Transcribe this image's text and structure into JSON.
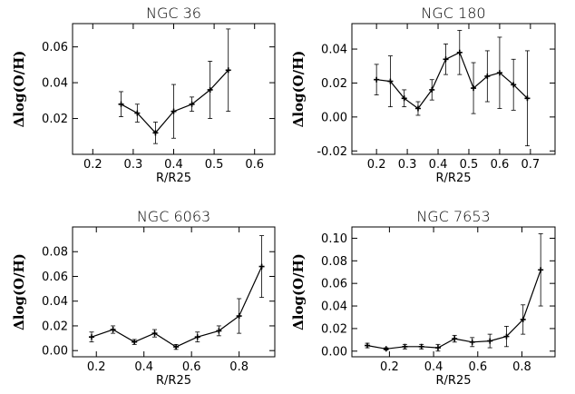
{
  "chart_data": [
    {
      "type": "line",
      "title": "NGC 36",
      "xlabel": "R/R25",
      "ylabel": "Δlog(O/H)",
      "xlim": [
        0.15,
        0.65
      ],
      "ylim": [
        0.0,
        0.073
      ],
      "xticks": [
        "0.2",
        "0.3",
        "0.4",
        "0.5",
        "0.6"
      ],
      "yticks": [
        "0.02",
        "0.04",
        "0.06"
      ],
      "x": [
        0.27,
        0.31,
        0.355,
        0.4,
        0.445,
        0.49,
        0.535
      ],
      "y": [
        0.028,
        0.023,
        0.012,
        0.024,
        0.028,
        0.036,
        0.047
      ],
      "yerr": [
        0.007,
        0.005,
        0.006,
        0.015,
        0.004,
        0.016,
        0.023
      ]
    },
    {
      "type": "line",
      "title": "NGC 180",
      "xlabel": "R/R25",
      "ylabel": "Δlog(O/H)",
      "xlim": [
        0.12,
        0.78
      ],
      "ylim": [
        -0.022,
        0.055
      ],
      "xticks": [
        "0.2",
        "0.3",
        "0.4",
        "0.5",
        "0.6",
        "0.7"
      ],
      "yticks": [
        "-0.02",
        "0.00",
        "0.02",
        "0.04"
      ],
      "x": [
        0.2,
        0.245,
        0.29,
        0.335,
        0.38,
        0.425,
        0.47,
        0.515,
        0.56,
        0.6,
        0.645,
        0.69
      ],
      "y": [
        0.022,
        0.021,
        0.011,
        0.005,
        0.016,
        0.034,
        0.038,
        0.017,
        0.024,
        0.026,
        0.019,
        0.011
      ],
      "yerr": [
        0.009,
        0.015,
        0.005,
        0.004,
        0.006,
        0.009,
        0.013,
        0.015,
        0.015,
        0.021,
        0.015,
        0.028
      ]
    },
    {
      "type": "line",
      "title": "NGC 6063",
      "xlabel": "R/R25",
      "ylabel": "Δlog(O/H)",
      "xlim": [
        0.1,
        0.95
      ],
      "ylim": [
        -0.005,
        0.1
      ],
      "xticks": [
        "0.2",
        "0.4",
        "0.6",
        "0.8"
      ],
      "yticks": [
        "0.00",
        "0.02",
        "0.04",
        "0.06",
        "0.08"
      ],
      "x": [
        0.18,
        0.27,
        0.36,
        0.445,
        0.535,
        0.625,
        0.715,
        0.8,
        0.895
      ],
      "y": [
        0.011,
        0.017,
        0.007,
        0.014,
        0.003,
        0.011,
        0.016,
        0.028,
        0.068
      ],
      "yerr": [
        0.004,
        0.003,
        0.002,
        0.003,
        0.002,
        0.004,
        0.004,
        0.014,
        0.025
      ]
    },
    {
      "type": "line",
      "title": "NGC 7653",
      "xlabel": "R/R25",
      "ylabel": "Δlog(O/H)",
      "xlim": [
        0.03,
        0.95
      ],
      "ylim": [
        -0.005,
        0.11
      ],
      "xticks": [
        "0.2",
        "0.4",
        "0.6",
        "0.8"
      ],
      "yticks": [
        "0.00",
        "0.02",
        "0.04",
        "0.06",
        "0.08",
        "0.10"
      ],
      "x": [
        0.1,
        0.185,
        0.27,
        0.345,
        0.42,
        0.495,
        0.575,
        0.655,
        0.73,
        0.805,
        0.885
      ],
      "y": [
        0.005,
        0.002,
        0.004,
        0.004,
        0.003,
        0.011,
        0.008,
        0.009,
        0.013,
        0.028,
        0.072
      ],
      "yerr": [
        0.002,
        0.001,
        0.002,
        0.002,
        0.003,
        0.003,
        0.004,
        0.006,
        0.009,
        0.013,
        0.032
      ]
    }
  ]
}
